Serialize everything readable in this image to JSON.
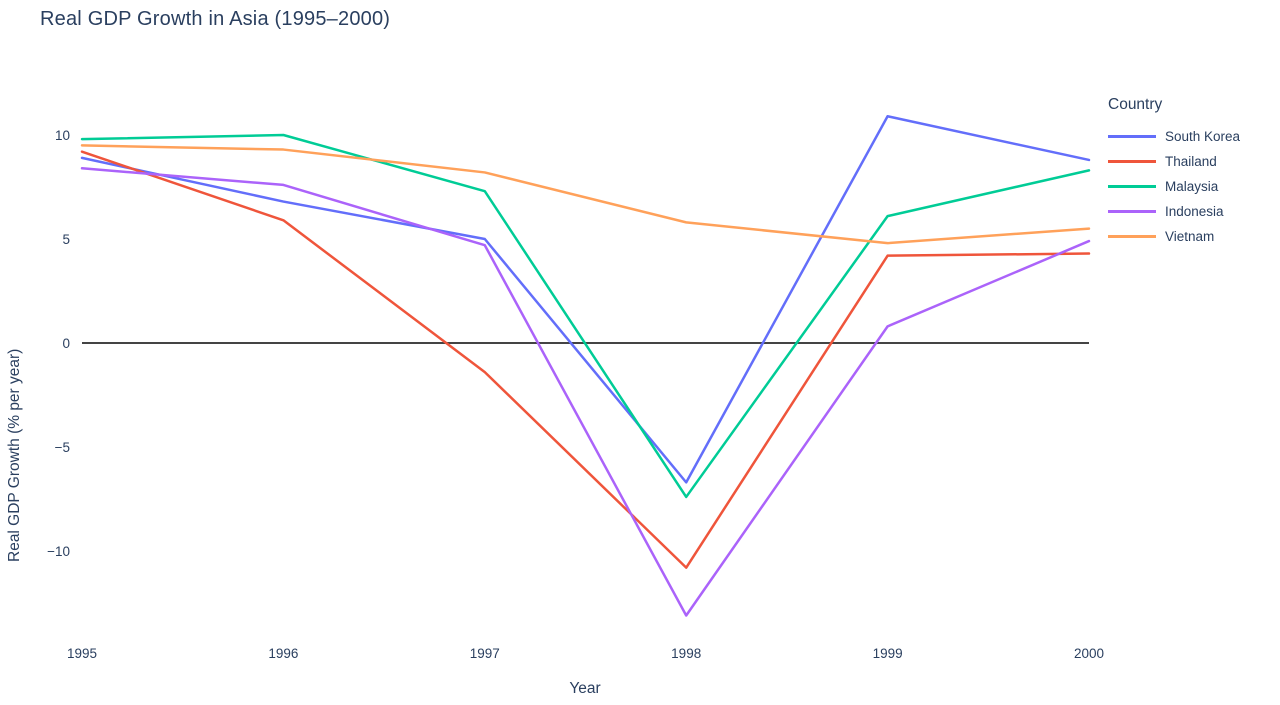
{
  "chart_data": {
    "type": "line",
    "title": "Real GDP Growth in Asia (1995–2000)",
    "xlabel": "Year",
    "ylabel": "Real GDP Growth (% per year)",
    "legend_title": "Country",
    "legend_position": "right",
    "grid": false,
    "zeroline": true,
    "x": [
      1995,
      1996,
      1997,
      1998,
      1999,
      2000
    ],
    "xtick_labels": [
      "1995",
      "1996",
      "1997",
      "1998",
      "1999",
      "2000"
    ],
    "ytick_values": [
      10,
      5,
      0,
      -5,
      -10
    ],
    "ytick_labels": [
      "10",
      "5",
      "0",
      "−5",
      "−10"
    ],
    "xlim": [
      1995,
      2000
    ],
    "ylim": [
      -14,
      11.5
    ],
    "series": [
      {
        "name": "South Korea",
        "color": "#636EFA",
        "values": [
          8.9,
          6.8,
          5.0,
          -6.7,
          10.9,
          8.8
        ]
      },
      {
        "name": "Thailand",
        "color": "#EF553B",
        "values": [
          9.2,
          5.9,
          -1.4,
          -10.8,
          4.2,
          4.3
        ]
      },
      {
        "name": "Malaysia",
        "color": "#00CC96",
        "values": [
          9.8,
          10.0,
          7.3,
          -7.4,
          6.1,
          8.3
        ]
      },
      {
        "name": "Indonesia",
        "color": "#AB63FA",
        "values": [
          8.4,
          7.6,
          4.7,
          -13.1,
          0.8,
          4.9
        ]
      },
      {
        "name": "Vietnam",
        "color": "#FFA15A",
        "values": [
          9.5,
          9.3,
          8.2,
          5.8,
          4.8,
          5.5
        ]
      }
    ],
    "colors": {
      "text": "#2a3f5f",
      "zeroline": "#444444",
      "background": "#ffffff"
    }
  }
}
